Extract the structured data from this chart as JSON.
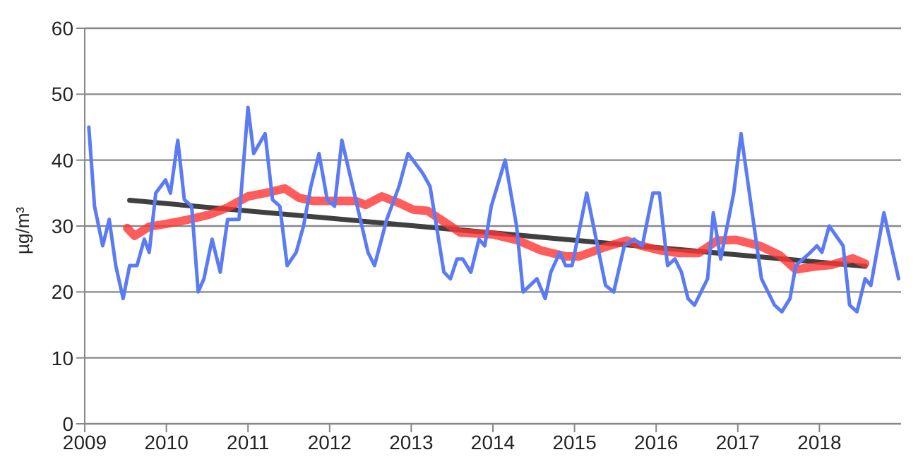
{
  "chart_data": {
    "type": "line",
    "ylabel": "µg/m³",
    "xlim": [
      2009,
      2019
    ],
    "xticks": [
      2009,
      2010,
      2011,
      2012,
      2013,
      2014,
      2015,
      2016,
      2017,
      2018
    ],
    "ylim": [
      0,
      60
    ],
    "yticks": [
      0,
      10,
      20,
      30,
      40,
      50,
      60
    ],
    "grid": "y",
    "legend": false,
    "marker": "none",
    "line_style": "solid",
    "series": [
      {
        "color": "#5b7bf5",
        "x": [
          2009.05,
          2009.12,
          2009.22,
          2009.3,
          2009.38,
          2009.47,
          2009.55,
          2009.64,
          2009.73,
          2009.79,
          2009.87,
          2009.99,
          2010.05,
          2010.14,
          2010.22,
          2010.31,
          2010.39,
          2010.46,
          2010.56,
          2010.66,
          2010.75,
          2010.89,
          2011.0,
          2011.07,
          2011.21,
          2011.3,
          2011.39,
          2011.48,
          2011.59,
          2011.68,
          2011.77,
          2011.87,
          2011.97,
          2012.06,
          2012.15,
          2012.32,
          2012.47,
          2012.55,
          2012.7,
          2012.85,
          2012.96,
          2013.14,
          2013.23,
          2013.4,
          2013.48,
          2013.56,
          2013.63,
          2013.73,
          2013.83,
          2013.9,
          2013.98,
          2014.15,
          2014.29,
          2014.37,
          2014.54,
          2014.64,
          2014.71,
          2014.82,
          2014.89,
          2014.97,
          2015.15,
          2015.38,
          2015.48,
          2015.61,
          2015.73,
          2015.83,
          2015.96,
          2016.04,
          2016.14,
          2016.23,
          2016.31,
          2016.39,
          2016.47,
          2016.63,
          2016.7,
          2016.79,
          2016.87,
          2016.95,
          2017.04,
          2017.29,
          2017.45,
          2017.54,
          2017.64,
          2017.71,
          2017.89,
          2017.97,
          2018.03,
          2018.12,
          2018.29,
          2018.37,
          2018.46,
          2018.56,
          2018.63,
          2018.79,
          2018.97
        ],
        "values": [
          45,
          33,
          27,
          31,
          24,
          19,
          24,
          24,
          28,
          26,
          35,
          37,
          35,
          43,
          34,
          33,
          20,
          22,
          28,
          23,
          31,
          31,
          48,
          41,
          44,
          34,
          33,
          24,
          26,
          30,
          36,
          41,
          34,
          33,
          43,
          34,
          26,
          24,
          31,
          36,
          41,
          38,
          36,
          23,
          22,
          25,
          25,
          23,
          28,
          27,
          33,
          40,
          30,
          20,
          22,
          19,
          23,
          26,
          24,
          24,
          35,
          21,
          20,
          27,
          28,
          27,
          35,
          35,
          24,
          25,
          23,
          19,
          18,
          22,
          32,
          25,
          30,
          35,
          44,
          22,
          18,
          17,
          19,
          24,
          26,
          27,
          26,
          30,
          27,
          18,
          17,
          22,
          21,
          32,
          22
        ]
      },
      {
        "color": "#ff3333",
        "x": [
          2009.52,
          2009.61,
          2009.79,
          2009.99,
          2010.28,
          2010.52,
          2010.75,
          2011.0,
          2011.21,
          2011.45,
          2011.62,
          2011.8,
          2012.32,
          2012.44,
          2012.64,
          2012.85,
          2013.02,
          2013.2,
          2013.37,
          2013.6,
          2014.01,
          2014.31,
          2014.59,
          2014.89,
          2015.06,
          2015.35,
          2015.64,
          2015.82,
          2016.05,
          2016.28,
          2016.52,
          2016.75,
          2016.98,
          2017.27,
          2017.51,
          2017.71,
          2017.92,
          2018.15,
          2018.41,
          2018.56
        ],
        "values": [
          29.7,
          28.5,
          29.9,
          30.3,
          31,
          31.7,
          32.8,
          34.5,
          35,
          35.7,
          34.3,
          33.8,
          33.8,
          33.2,
          34.5,
          33.5,
          32.5,
          32.3,
          30.9,
          29,
          28.7,
          27.8,
          26.3,
          25.4,
          25.4,
          26.7,
          27.8,
          27,
          26.3,
          25.9,
          25.9,
          27.8,
          27.9,
          27,
          25.6,
          23.4,
          23.8,
          24.1,
          25.1,
          24.3
        ]
      },
      {
        "color": "#404040",
        "x": [
          2009.55,
          2018.56
        ],
        "values": [
          33.9,
          23.9
        ]
      }
    ]
  }
}
